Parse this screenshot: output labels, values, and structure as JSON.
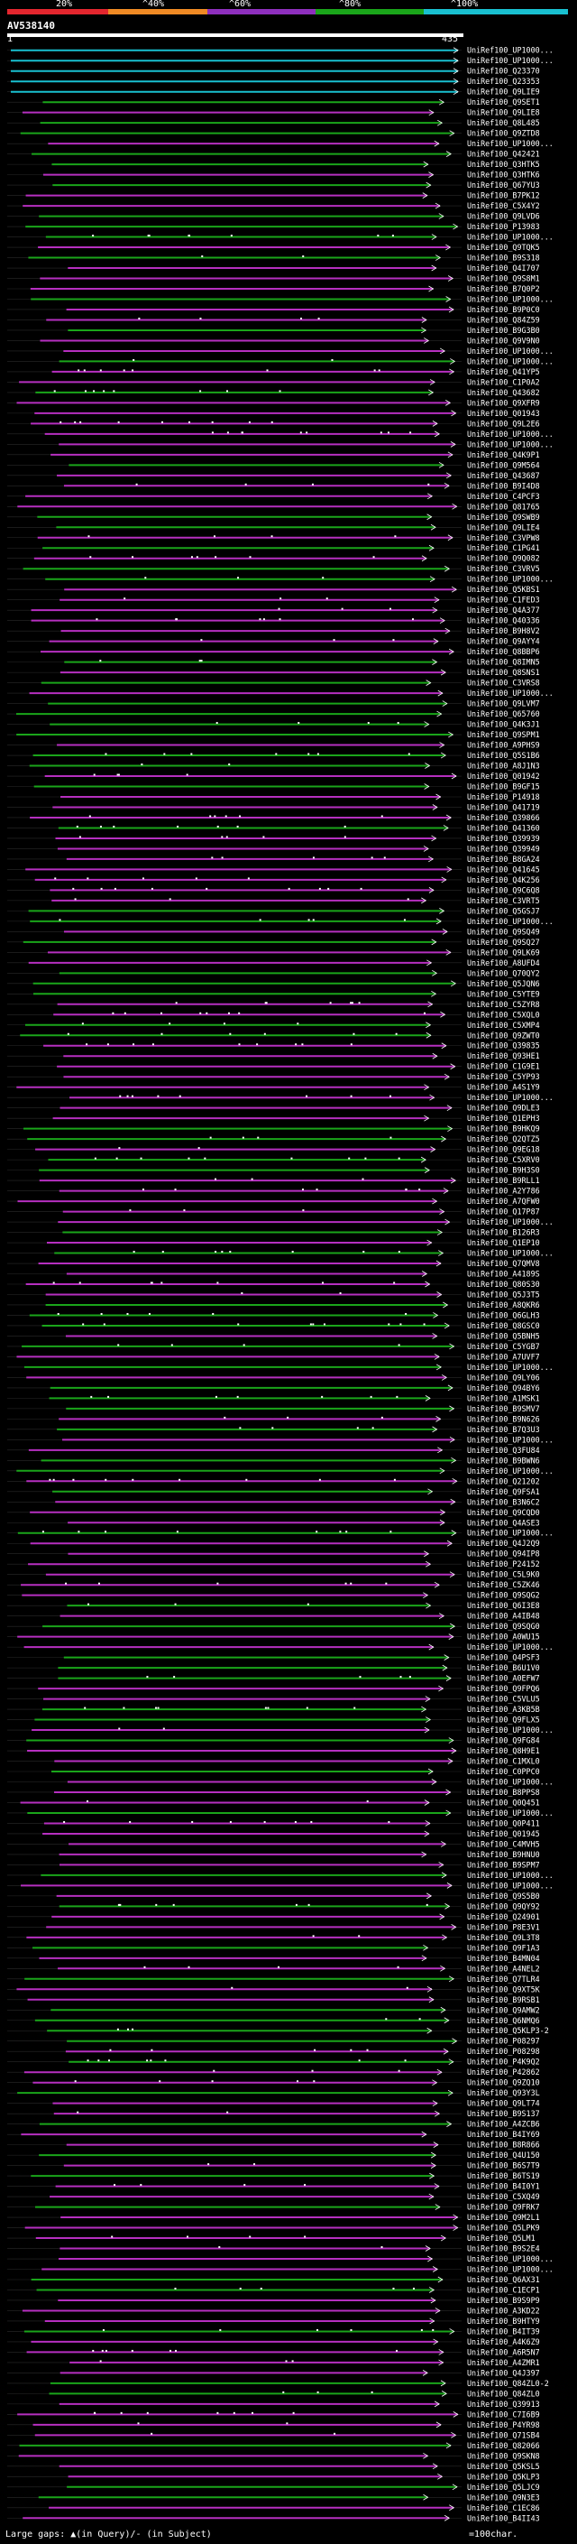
{
  "query": {
    "id": "AV538140",
    "start": "1",
    "end": "435"
  },
  "identity_scale": {
    "labels": [
      "20%",
      "^40%",
      "^60%",
      "^80%",
      "^100%"
    ],
    "colors": [
      "#e3262e",
      "#f08a24",
      "#8e2fbd",
      "#1aa51a",
      "#19c0d0"
    ]
  },
  "legend": {
    "text": "Large gaps: ▲(in Query)/- (in Subject)",
    "scale_text": "=100char."
  },
  "hits": [
    "UniRef100_UP1000...",
    "UniRef100_UP1000...",
    "UniRef100_Q23370",
    "UniRef100_Q23353",
    "UniRef100_Q9LIE9",
    "UniRef100_Q9SET1",
    "UniRef100_Q9LIE8",
    "UniRef100_Q8L485",
    "UniRef100_Q9ZTD8",
    "UniRef100_UP1000...",
    "UniRef100_Q42421",
    "UniRef100_Q3HTK5",
    "UniRef100_Q3HTK6",
    "UniRef100_Q67YU3",
    "UniRef100_B7PK12",
    "UniRef100_C5X4Y2",
    "UniRef100_Q9LVD6",
    "UniRef100_P13983",
    "UniRef100_UP1000...",
    "UniRef100_Q9TQK5",
    "UniRef100_B9S318",
    "UniRef100_Q4I707",
    "UniRef100_Q9S8M1",
    "UniRef100_B7Q0P2",
    "UniRef100_UP1000...",
    "UniRef100_B9P0C0",
    "UniRef100_Q84Z59",
    "UniRef100_B9G3B0",
    "UniRef100_Q9V9N0",
    "UniRef100_UP1000...",
    "UniRef100_UP1000...",
    "UniRef100_Q41YP5",
    "UniRef100_C1P0A2",
    "UniRef100_Q43682",
    "UniRef100_Q9XFR9",
    "UniRef100_Q01943",
    "UniRef100_Q9L2E6",
    "UniRef100_UP1000...",
    "UniRef100_UP1000...",
    "UniRef100_Q4K9P1",
    "UniRef100_Q9M564",
    "UniRef100_Q43687",
    "UniRef100_B9I4D8",
    "UniRef100_C4PCF3",
    "UniRef100_Q81765",
    "UniRef100_Q9SWB9",
    "UniRef100_Q9LIE4",
    "UniRef100_C3VPW8",
    "UniRef100_C1PG41",
    "UniRef100_Q9Q082",
    "UniRef100_C3VRV5",
    "UniRef100_UP1000...",
    "UniRef100_Q5KBS1",
    "UniRef100_C1FED3",
    "UniRef100_Q4A377",
    "UniRef100_Q40336",
    "UniRef100_B9H8V2",
    "UniRef100_Q9AYY4",
    "UniRef100_Q8BBP6",
    "UniRef100_Q8IMN5",
    "UniRef100_Q8SNS1",
    "UniRef100_C3VRS8",
    "UniRef100_UP1000...",
    "UniRef100_Q9LVM7",
    "UniRef100_Q65760",
    "UniRef100_Q4K3J1",
    "UniRef100_Q9SPM1",
    "UniRef100_A9PHS9",
    "UniRef100_Q5S1B6",
    "UniRef100_A8J1N3",
    "UniRef100_Q01942",
    "UniRef100_B9GF15",
    "UniRef100_P14918",
    "UniRef100_Q41719",
    "UniRef100_Q39866",
    "UniRef100_Q41360",
    "UniRef100_Q39939",
    "UniRef100_Q39949",
    "UniRef100_B8GA24",
    "UniRef100_Q41645",
    "UniRef100_Q4K256",
    "UniRef100_Q9C6Q8",
    "UniRef100_C3VRT5",
    "UniRef100_Q5GSJ7",
    "UniRef100_UP1000...",
    "UniRef100_Q9SQ49",
    "UniRef100_Q9SQ27",
    "UniRef100_Q9LK69",
    "UniRef100_A8UFD4",
    "UniRef100_Q70QY2",
    "UniRef100_Q5JQN6",
    "UniRef100_C5YTE9",
    "UniRef100_C5ZYR8",
    "UniRef100_C5XQL0",
    "UniRef100_C5XMP4",
    "UniRef100_Q9ZWT0",
    "UniRef100_Q39835",
    "UniRef100_Q93HE1",
    "UniRef100_C1G9E1",
    "UniRef100_C5YP93",
    "UniRef100_A4S1Y9",
    "UniRef100_UP1000...",
    "UniRef100_Q9DLE3",
    "UniRef100_Q1EPH3",
    "UniRef100_B9HKQ9",
    "UniRef100_Q2QTZ5",
    "UniRef100_Q9EG18",
    "UniRef100_C5XRV0",
    "UniRef100_B9H3S0",
    "UniRef100_B9RLL1",
    "UniRef100_A2Y786",
    "UniRef100_A7QFW0",
    "UniRef100_Q17P87",
    "UniRef100_UP1000...",
    "UniRef100_B126R3",
    "UniRef100_Q1EP10",
    "UniRef100_UP1000...",
    "UniRef100_Q7QMV8",
    "UniRef100_A4189S",
    "UniRef100_Q80S30",
    "UniRef100_Q5J3T5",
    "UniRef100_A8QKR6",
    "UniRef100_Q6GLH3",
    "UniRef100_Q8GSC0",
    "UniRef100_Q5BNH5",
    "UniRef100_C5YGB7",
    "UniRef100_A7UVF7",
    "UniRef100_UP1000...",
    "UniRef100_Q9LY06",
    "UniRef100_Q94BY6",
    "UniRef100_A1MSK1",
    "UniRef100_B9SMV7",
    "UniRef100_B9N626",
    "UniRef100_B7Q3U3",
    "UniRef100_UP1000...",
    "UniRef100_Q3FU84",
    "UniRef100_B9BWN6",
    "UniRef100_UP1000...",
    "UniRef100_Q21202",
    "UniRef100_Q9FSA1",
    "UniRef100_B3N6C2",
    "UniRef100_Q9CQD0",
    "UniRef100_Q4ASE3",
    "UniRef100_UP1000...",
    "UniRef100_Q4J2Q9",
    "UniRef100_Q94IP8",
    "UniRef100_P24152",
    "UniRef100_C5L9K0",
    "UniRef100_C5ZK46",
    "UniRef100_Q9SQG2",
    "UniRef100_Q6I3E8",
    "UniRef100_A4IB48",
    "UniRef100_Q9SQG0",
    "UniRef100_A0WU15",
    "UniRef100_UP1000...",
    "UniRef100_Q4PSF3",
    "UniRef100_B6U1V0",
    "UniRef100_A0EFW7",
    "UniRef100_Q9FPQ6",
    "UniRef100_C5VLU5",
    "UniRef100_A3KB5B",
    "UniRef100_Q9FLX5",
    "UniRef100_UP1000...",
    "UniRef100_Q9FG84",
    "UniRef100_Q8H9E1",
    "UniRef100_C1MXL0",
    "UniRef100_C0PPC0",
    "UniRef100_UP1000...",
    "UniRef100_B8PPS8",
    "UniRef100_Q0Q451",
    "UniRef100_UP1000...",
    "UniRef100_Q0P411",
    "UniRef100_Q01945",
    "UniRef100_C4MVH5",
    "UniRef100_B9HNU0",
    "UniRef100_B9SPM7",
    "UniRef100_UP1000...",
    "UniRef100_UP1000...",
    "UniRef100_Q9S5B0",
    "UniRef100_Q9QY92",
    "UniRef100_Q24901",
    "UniRef100_P8E3V1",
    "UniRef100_Q9L3T8",
    "UniRef100_Q9F1A3",
    "UniRef100_B4MN04",
    "UniRef100_A4NEL2",
    "UniRef100_Q7TLR4",
    "UniRef100_Q9XT5K",
    "UniRef100_B9RSB1",
    "UniRef100_Q9AMW2",
    "UniRef100_Q6NMQ6",
    "UniRef100_Q5KLP3-2",
    "UniRef100_P08297",
    "UniRef100_P08298",
    "UniRef100_P4K9Q2",
    "UniRef100_P42862",
    "UniRef100_Q9ZQ10",
    "UniRef100_Q93Y3L",
    "UniRef100_Q9LT74",
    "UniRef100_B9S137",
    "UniRef100_A4ZCB6",
    "UniRef100_B4IY69",
    "UniRef100_B8R866",
    "UniRef100_Q4U150",
    "UniRef100_B6S7T9",
    "UniRef100_B6TS19",
    "UniRef100_B4I0Y1",
    "UniRef100_C5XQ49",
    "UniRef100_Q9FRK7",
    "UniRef100_Q9M2L1",
    "UniRef100_Q5LPK9",
    "UniRef100_Q5LM1",
    "UniRef100_B9S2E4",
    "UniRef100_UP1000...",
    "UniRef100_UP1000...",
    "UniRef100_Q6AX31",
    "UniRef100_C1ECP1",
    "UniRef100_B9S9P9",
    "UniRef100_A3KD22",
    "UniRef100_B9HTY9",
    "UniRef100_B4IT39",
    "UniRef100_A4K6Z9",
    "UniRef100_A6R5N7",
    "UniRef100_A4ZMR1",
    "UniRef100_Q4J397",
    "UniRef100_Q84ZL0-2",
    "UniRef100_Q84ZL0",
    "UniRef100_Q39913",
    "UniRef100_C7I6B9",
    "UniRef100_P4YR98",
    "UniRef100_Q71SB4",
    "UniRef100_Q82066",
    "UniRef100_Q9SKN8",
    "UniRef100_Q5KSL5",
    "UniRef100_Q5KLP3",
    "UniRef100_Q5LJC9",
    "UniRef100_Q9N3E3",
    "UniRef100_C1EC86",
    "UniRef100_B4II43"
  ]
}
